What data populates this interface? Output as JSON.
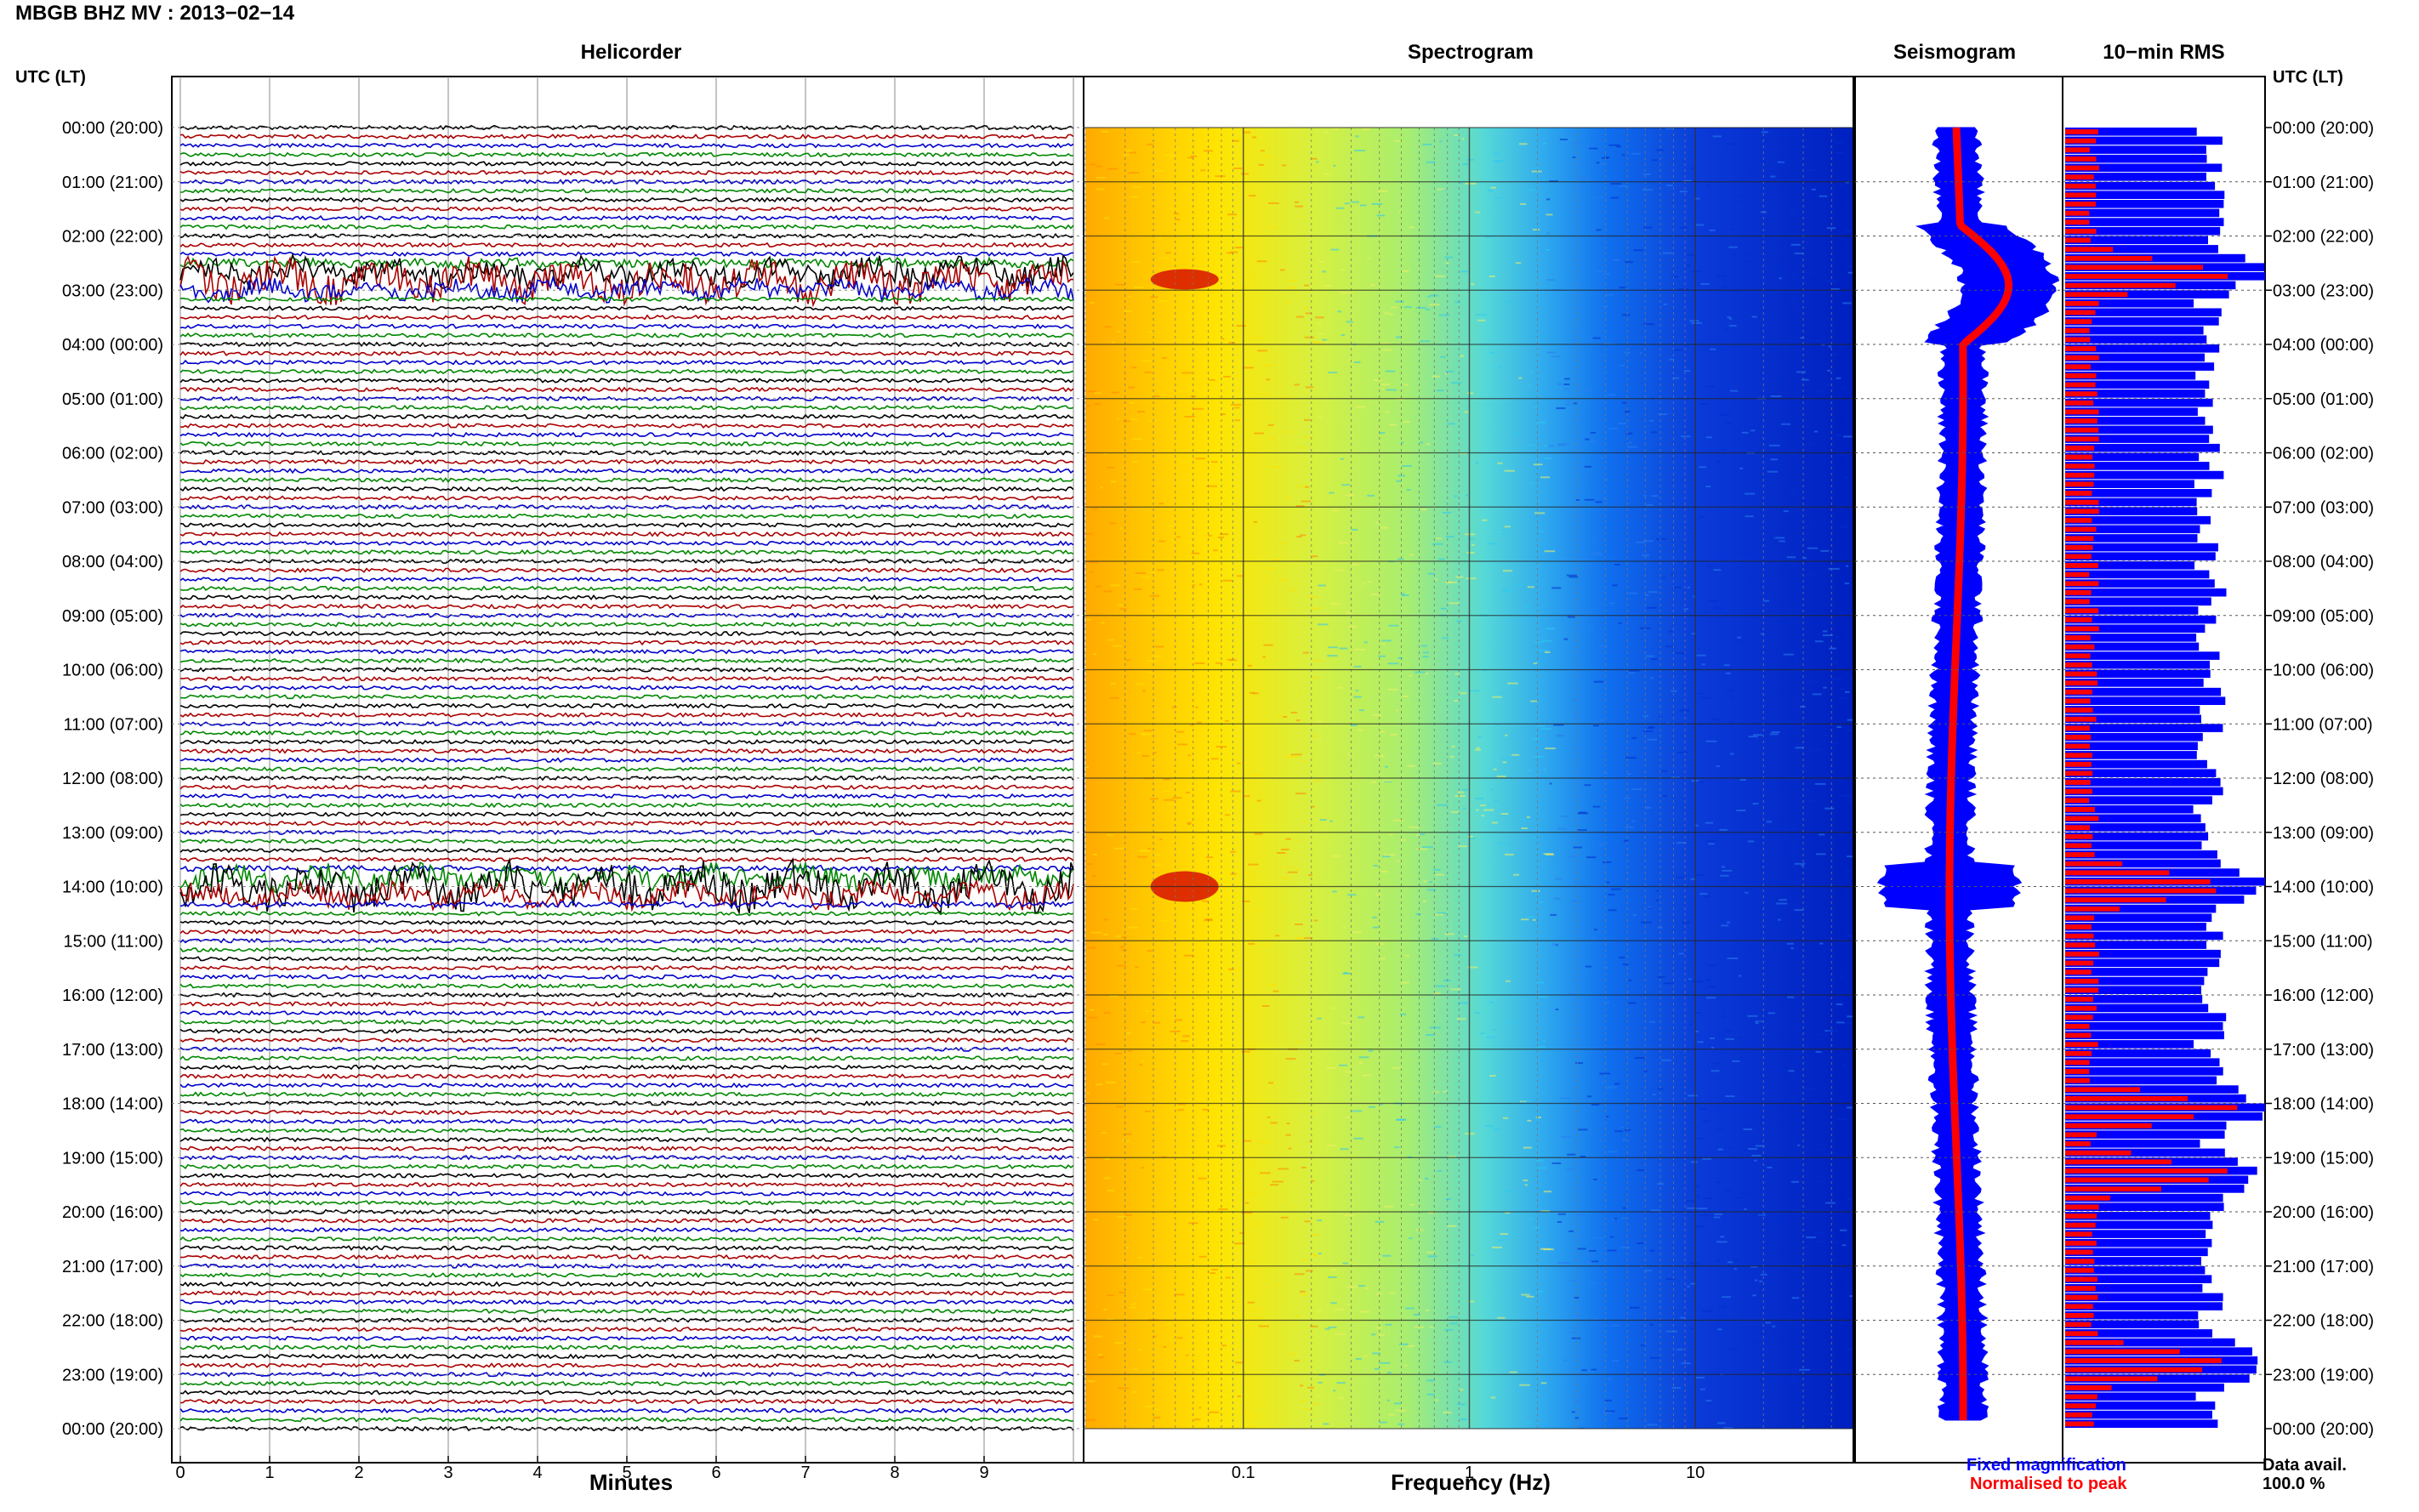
{
  "header": {
    "title": "MBGB BHZ MV : 2013−02−14",
    "utc_label": "UTC (LT)",
    "utc_label_right": "UTC (LT)"
  },
  "panels": {
    "helicorder": "Helicorder",
    "spectrogram": "Spectrogram",
    "seismogram": "Seismogram",
    "rms": "10−min RMS"
  },
  "legend": {
    "fixed": "Fixed magnification",
    "normalised": "Normalised to peak",
    "data_avail_label": "Data avail.",
    "data_avail_value": "100.0 %"
  },
  "colors": {
    "blue": "#0000ff",
    "red": "#ff0000",
    "trace_colors": [
      "#000000",
      "#aa0000",
      "#0000cc",
      "#008800"
    ]
  },
  "chart_data": [
    {
      "type": "line",
      "name": "Helicorder",
      "xlabel": "Minutes",
      "x_ticks": [
        "0",
        "1",
        "2",
        "3",
        "4",
        "5",
        "6",
        "7",
        "8",
        "9"
      ],
      "xlim": [
        0,
        10
      ],
      "time_ticks": [
        "00:00 (20:00)",
        "01:00 (21:00)",
        "02:00 (22:00)",
        "03:00 (23:00)",
        "04:00 (00:00)",
        "05:00 (01:00)",
        "06:00 (02:00)",
        "07:00 (03:00)",
        "08:00 (04:00)",
        "09:00 (05:00)",
        "10:00 (06:00)",
        "11:00 (07:00)",
        "12:00 (08:00)",
        "13:00 (09:00)",
        "14:00 (10:00)",
        "15:00 (11:00)",
        "16:00 (12:00)",
        "17:00 (13:00)",
        "18:00 (14:00)",
        "19:00 (15:00)",
        "20:00 (16:00)",
        "21:00 (17:00)",
        "22:00 (18:00)",
        "23:00 (19:00)",
        "00:00 (20:00)"
      ],
      "lines_per_hour": 6,
      "event_hours": [
        2.8,
        14.0
      ]
    },
    {
      "type": "heatmap",
      "name": "Spectrogram",
      "xlabel": "Frequency (Hz)",
      "x_scale": "log",
      "x_ticks": [
        "0.1",
        "1",
        "10"
      ],
      "xlim": [
        0.02,
        50
      ]
    },
    {
      "type": "line",
      "name": "Seismogram",
      "series": [
        {
          "name": "Fixed magnification",
          "color": "#0000ff"
        },
        {
          "name": "Normalised to peak",
          "color": "#ff0000"
        }
      ]
    },
    {
      "type": "bar",
      "name": "10-min RMS",
      "series": [
        {
          "name": "Fixed magnification",
          "color": "#0000ff"
        },
        {
          "name": "Normalised to peak",
          "color": "#ff0000"
        }
      ],
      "peak_hours": [
        2.7,
        14.0,
        18.1,
        19.3,
        22.8
      ]
    }
  ]
}
